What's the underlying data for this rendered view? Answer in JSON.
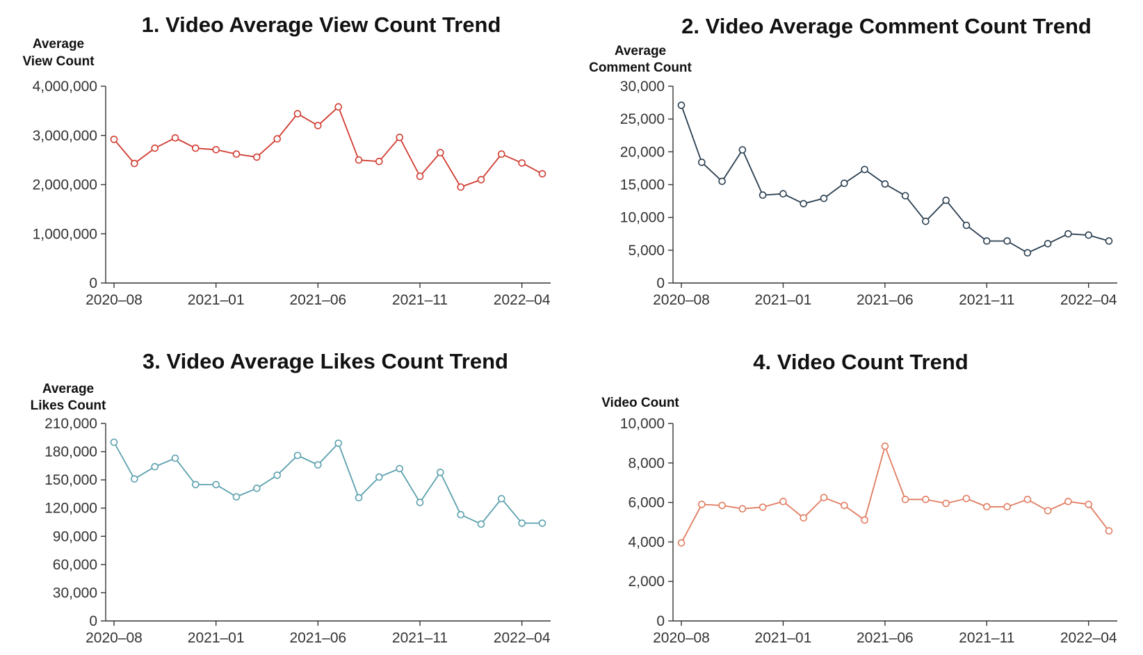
{
  "chart_data": [
    {
      "type": "line",
      "title": "1. Video Average View Count Trend",
      "ylabel_lines": [
        "Average",
        "View Count"
      ],
      "color": "#d03a2f",
      "x": [
        "2020-08",
        "2020-09",
        "2020-10",
        "2020-11",
        "2020-12",
        "2021-01",
        "2021-02",
        "2021-03",
        "2021-04",
        "2021-05",
        "2021-06",
        "2021-07",
        "2021-08",
        "2021-09",
        "2021-10",
        "2021-11",
        "2021-12",
        "2022-01",
        "2022-02",
        "2022-03",
        "2022-04",
        "2022-05"
      ],
      "values": [
        2920000,
        2430000,
        2740000,
        2950000,
        2740000,
        2710000,
        2620000,
        2560000,
        2930000,
        3440000,
        3200000,
        3580000,
        2500000,
        2470000,
        2960000,
        2170000,
        2650000,
        1950000,
        2100000,
        2620000,
        2440000,
        2220000
      ],
      "xticks": [
        "2020–08",
        "2021–01",
        "2021–06",
        "2021–11",
        "2022–04"
      ],
      "yticks": [
        0,
        1000000,
        2000000,
        3000000,
        4000000
      ],
      "ytick_labels": [
        "0",
        "1,000,000",
        "2,000,000",
        "3,000,000",
        "4,000,000"
      ],
      "ylim": [
        0,
        4000000
      ],
      "grid": false
    },
    {
      "type": "line",
      "title": "2. Video Average Comment Count Trend",
      "ylabel_lines": [
        "Average",
        "Comment Count"
      ],
      "color": "#283c4e",
      "x": [
        "2020-08",
        "2020-09",
        "2020-10",
        "2020-11",
        "2020-12",
        "2021-01",
        "2021-02",
        "2021-03",
        "2021-04",
        "2021-05",
        "2021-06",
        "2021-07",
        "2021-08",
        "2021-09",
        "2021-10",
        "2021-11",
        "2021-12",
        "2022-01",
        "2022-02",
        "2022-03",
        "2022-04",
        "2022-05"
      ],
      "values": [
        27100,
        18400,
        15500,
        20300,
        13400,
        13600,
        12100,
        12900,
        15200,
        17300,
        15100,
        13300,
        9400,
        12600,
        8800,
        6400,
        6400,
        4600,
        6000,
        7500,
        7300,
        6400
      ],
      "xticks": [
        "2020–08",
        "2021–01",
        "2021–06",
        "2021–11",
        "2022–04"
      ],
      "yticks": [
        0,
        5000,
        10000,
        15000,
        20000,
        25000,
        30000
      ],
      "ytick_labels": [
        "0",
        "5,000",
        "10,000",
        "15,000",
        "20,000",
        "25,000",
        "30,000"
      ],
      "ylim": [
        0,
        30000
      ],
      "grid": false
    },
    {
      "type": "line",
      "title": "3. Video Average Likes Count Trend",
      "ylabel_lines": [
        "Average",
        "Likes Count"
      ],
      "color": "#5aa0ad",
      "x": [
        "2020-08",
        "2020-09",
        "2020-10",
        "2020-11",
        "2020-12",
        "2021-01",
        "2021-02",
        "2021-03",
        "2021-04",
        "2021-05",
        "2021-06",
        "2021-07",
        "2021-08",
        "2021-09",
        "2021-10",
        "2021-11",
        "2021-12",
        "2022-01",
        "2022-02",
        "2022-03",
        "2022-04",
        "2022-05"
      ],
      "values": [
        190000,
        151000,
        164000,
        173000,
        145000,
        145000,
        132000,
        141000,
        155000,
        176000,
        166000,
        189000,
        131000,
        153000,
        162000,
        126000,
        158000,
        113000,
        103000,
        130000,
        104000,
        104000
      ],
      "xticks": [
        "2020–08",
        "2021–01",
        "2021–06",
        "2021–11",
        "2022–04"
      ],
      "yticks": [
        0,
        30000,
        60000,
        90000,
        120000,
        150000,
        180000,
        210000
      ],
      "ytick_labels": [
        "0",
        "30,000",
        "60,000",
        "90,000",
        "120,000",
        "150,000",
        "180,000",
        "210,000"
      ],
      "ylim": [
        0,
        210000
      ],
      "grid": false
    },
    {
      "type": "line",
      "title": "4. Video Count Trend",
      "ylabel_lines": [
        "Video Count"
      ],
      "color": "#e07b5e",
      "x": [
        "2020-08",
        "2020-09",
        "2020-10",
        "2020-11",
        "2020-12",
        "2021-01",
        "2021-02",
        "2021-03",
        "2021-04",
        "2021-05",
        "2021-06",
        "2021-07",
        "2021-08",
        "2021-09",
        "2021-10",
        "2021-11",
        "2021-12",
        "2022-01",
        "2022-02",
        "2022-03",
        "2022-04",
        "2022-05"
      ],
      "values": [
        3950,
        5900,
        5850,
        5680,
        5760,
        6050,
        5220,
        6250,
        5850,
        5110,
        8850,
        6150,
        6150,
        5950,
        6200,
        5780,
        5780,
        6150,
        5580,
        6050,
        5900,
        4560
      ],
      "xticks": [
        "2020–08",
        "2021–01",
        "2021–06",
        "2021–11",
        "2022–04"
      ],
      "yticks": [
        0,
        2000,
        4000,
        6000,
        8000,
        10000
      ],
      "ytick_labels": [
        "0",
        "2,000",
        "4,000",
        "6,000",
        "8,000",
        "10,000"
      ],
      "ylim": [
        0,
        10000
      ],
      "grid": false
    }
  ]
}
